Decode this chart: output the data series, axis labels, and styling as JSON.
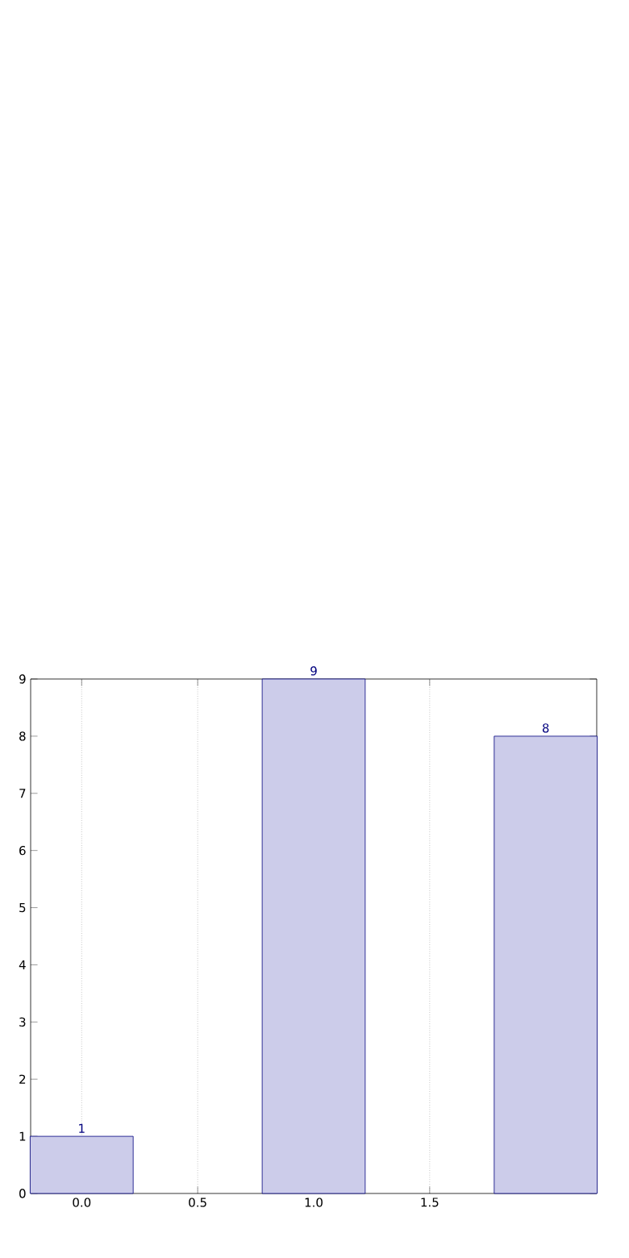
{
  "chart_data": {
    "type": "bar",
    "x": [
      0,
      1,
      2
    ],
    "values": [
      1,
      9,
      8
    ],
    "color": "#ccccea",
    "data_labels": true,
    "xlim": [
      -0.22,
      2.22
    ],
    "ylim": [
      0,
      9
    ],
    "xticks": [
      {
        "value": 0,
        "label": "0.0"
      },
      {
        "value": 0.5,
        "label": "0.5"
      },
      {
        "value": 1,
        "label": "1.0"
      },
      {
        "value": 1.5,
        "label": "1.5"
      }
    ],
    "yticks": [
      0,
      1,
      2,
      3,
      4,
      5,
      6,
      7,
      8,
      9
    ],
    "grid": "x"
  }
}
